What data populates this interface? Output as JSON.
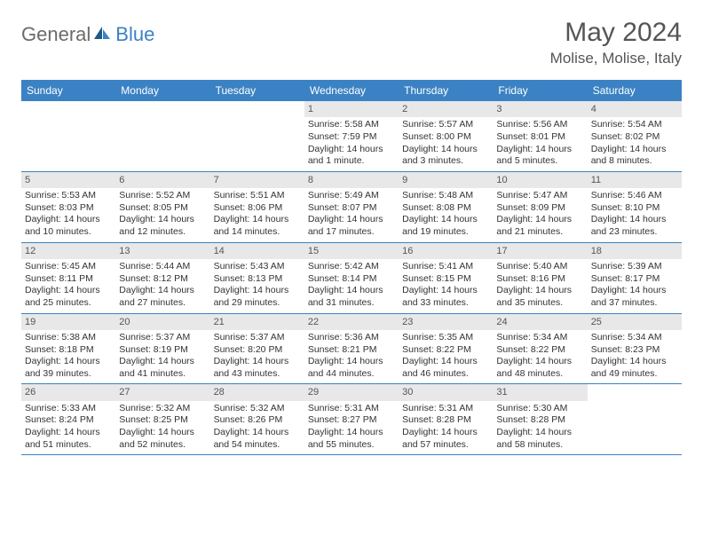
{
  "brand": {
    "part1": "General",
    "part2": "Blue"
  },
  "title": "May 2024",
  "location": "Molise, Molise, Italy",
  "colors": {
    "header_bg": "#3b82c4",
    "header_text": "#ffffff",
    "daynum_bg": "#e8e8e8",
    "text": "#333333",
    "border": "#3b82c4",
    "logo_gray": "#6b6b6b",
    "logo_blue": "#3b82c4"
  },
  "typography": {
    "month_title_fontsize": 30,
    "location_fontsize": 17,
    "header_fontsize": 12,
    "body_fontsize": 10.5,
    "daynum_fontsize": 11
  },
  "day_names": [
    "Sunday",
    "Monday",
    "Tuesday",
    "Wednesday",
    "Thursday",
    "Friday",
    "Saturday"
  ],
  "weeks": [
    [
      {
        "empty": true
      },
      {
        "empty": true
      },
      {
        "empty": true
      },
      {
        "num": "1",
        "sunrise": "Sunrise: 5:58 AM",
        "sunset": "Sunset: 7:59 PM",
        "daylight": "Daylight: 14 hours and 1 minute."
      },
      {
        "num": "2",
        "sunrise": "Sunrise: 5:57 AM",
        "sunset": "Sunset: 8:00 PM",
        "daylight": "Daylight: 14 hours and 3 minutes."
      },
      {
        "num": "3",
        "sunrise": "Sunrise: 5:56 AM",
        "sunset": "Sunset: 8:01 PM",
        "daylight": "Daylight: 14 hours and 5 minutes."
      },
      {
        "num": "4",
        "sunrise": "Sunrise: 5:54 AM",
        "sunset": "Sunset: 8:02 PM",
        "daylight": "Daylight: 14 hours and 8 minutes."
      }
    ],
    [
      {
        "num": "5",
        "sunrise": "Sunrise: 5:53 AM",
        "sunset": "Sunset: 8:03 PM",
        "daylight": "Daylight: 14 hours and 10 minutes."
      },
      {
        "num": "6",
        "sunrise": "Sunrise: 5:52 AM",
        "sunset": "Sunset: 8:05 PM",
        "daylight": "Daylight: 14 hours and 12 minutes."
      },
      {
        "num": "7",
        "sunrise": "Sunrise: 5:51 AM",
        "sunset": "Sunset: 8:06 PM",
        "daylight": "Daylight: 14 hours and 14 minutes."
      },
      {
        "num": "8",
        "sunrise": "Sunrise: 5:49 AM",
        "sunset": "Sunset: 8:07 PM",
        "daylight": "Daylight: 14 hours and 17 minutes."
      },
      {
        "num": "9",
        "sunrise": "Sunrise: 5:48 AM",
        "sunset": "Sunset: 8:08 PM",
        "daylight": "Daylight: 14 hours and 19 minutes."
      },
      {
        "num": "10",
        "sunrise": "Sunrise: 5:47 AM",
        "sunset": "Sunset: 8:09 PM",
        "daylight": "Daylight: 14 hours and 21 minutes."
      },
      {
        "num": "11",
        "sunrise": "Sunrise: 5:46 AM",
        "sunset": "Sunset: 8:10 PM",
        "daylight": "Daylight: 14 hours and 23 minutes."
      }
    ],
    [
      {
        "num": "12",
        "sunrise": "Sunrise: 5:45 AM",
        "sunset": "Sunset: 8:11 PM",
        "daylight": "Daylight: 14 hours and 25 minutes."
      },
      {
        "num": "13",
        "sunrise": "Sunrise: 5:44 AM",
        "sunset": "Sunset: 8:12 PM",
        "daylight": "Daylight: 14 hours and 27 minutes."
      },
      {
        "num": "14",
        "sunrise": "Sunrise: 5:43 AM",
        "sunset": "Sunset: 8:13 PM",
        "daylight": "Daylight: 14 hours and 29 minutes."
      },
      {
        "num": "15",
        "sunrise": "Sunrise: 5:42 AM",
        "sunset": "Sunset: 8:14 PM",
        "daylight": "Daylight: 14 hours and 31 minutes."
      },
      {
        "num": "16",
        "sunrise": "Sunrise: 5:41 AM",
        "sunset": "Sunset: 8:15 PM",
        "daylight": "Daylight: 14 hours and 33 minutes."
      },
      {
        "num": "17",
        "sunrise": "Sunrise: 5:40 AM",
        "sunset": "Sunset: 8:16 PM",
        "daylight": "Daylight: 14 hours and 35 minutes."
      },
      {
        "num": "18",
        "sunrise": "Sunrise: 5:39 AM",
        "sunset": "Sunset: 8:17 PM",
        "daylight": "Daylight: 14 hours and 37 minutes."
      }
    ],
    [
      {
        "num": "19",
        "sunrise": "Sunrise: 5:38 AM",
        "sunset": "Sunset: 8:18 PM",
        "daylight": "Daylight: 14 hours and 39 minutes."
      },
      {
        "num": "20",
        "sunrise": "Sunrise: 5:37 AM",
        "sunset": "Sunset: 8:19 PM",
        "daylight": "Daylight: 14 hours and 41 minutes."
      },
      {
        "num": "21",
        "sunrise": "Sunrise: 5:37 AM",
        "sunset": "Sunset: 8:20 PM",
        "daylight": "Daylight: 14 hours and 43 minutes."
      },
      {
        "num": "22",
        "sunrise": "Sunrise: 5:36 AM",
        "sunset": "Sunset: 8:21 PM",
        "daylight": "Daylight: 14 hours and 44 minutes."
      },
      {
        "num": "23",
        "sunrise": "Sunrise: 5:35 AM",
        "sunset": "Sunset: 8:22 PM",
        "daylight": "Daylight: 14 hours and 46 minutes."
      },
      {
        "num": "24",
        "sunrise": "Sunrise: 5:34 AM",
        "sunset": "Sunset: 8:22 PM",
        "daylight": "Daylight: 14 hours and 48 minutes."
      },
      {
        "num": "25",
        "sunrise": "Sunrise: 5:34 AM",
        "sunset": "Sunset: 8:23 PM",
        "daylight": "Daylight: 14 hours and 49 minutes."
      }
    ],
    [
      {
        "num": "26",
        "sunrise": "Sunrise: 5:33 AM",
        "sunset": "Sunset: 8:24 PM",
        "daylight": "Daylight: 14 hours and 51 minutes."
      },
      {
        "num": "27",
        "sunrise": "Sunrise: 5:32 AM",
        "sunset": "Sunset: 8:25 PM",
        "daylight": "Daylight: 14 hours and 52 minutes."
      },
      {
        "num": "28",
        "sunrise": "Sunrise: 5:32 AM",
        "sunset": "Sunset: 8:26 PM",
        "daylight": "Daylight: 14 hours and 54 minutes."
      },
      {
        "num": "29",
        "sunrise": "Sunrise: 5:31 AM",
        "sunset": "Sunset: 8:27 PM",
        "daylight": "Daylight: 14 hours and 55 minutes."
      },
      {
        "num": "30",
        "sunrise": "Sunrise: 5:31 AM",
        "sunset": "Sunset: 8:28 PM",
        "daylight": "Daylight: 14 hours and 57 minutes."
      },
      {
        "num": "31",
        "sunrise": "Sunrise: 5:30 AM",
        "sunset": "Sunset: 8:28 PM",
        "daylight": "Daylight: 14 hours and 58 minutes."
      },
      {
        "empty": true
      }
    ]
  ]
}
